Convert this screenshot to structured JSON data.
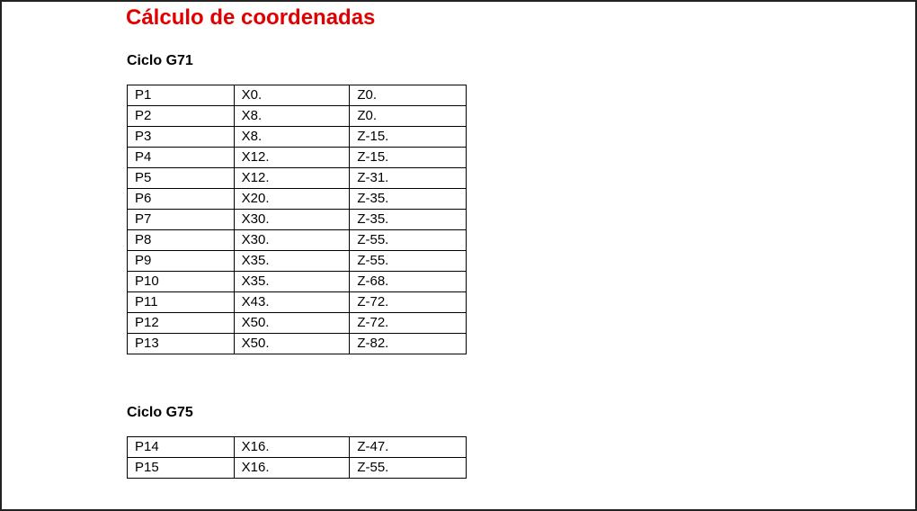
{
  "title": "Cálculo de coordenadas",
  "colors": {
    "title": "#e00000",
    "text": "#000000",
    "border": "#000000"
  },
  "sections": [
    {
      "heading": "Ciclo G71",
      "rows": [
        {
          "point": "P1",
          "x": "X0.",
          "z": "Z0."
        },
        {
          "point": "P2",
          "x": "X8.",
          "z": "Z0."
        },
        {
          "point": "P3",
          "x": "X8.",
          "z": "Z-15."
        },
        {
          "point": "P4",
          "x": "X12.",
          "z": "Z-15."
        },
        {
          "point": "P5",
          "x": "X12.",
          "z": "Z-31."
        },
        {
          "point": "P6",
          "x": "X20.",
          "z": "Z-35."
        },
        {
          "point": "P7",
          "x": "X30.",
          "z": "Z-35."
        },
        {
          "point": "P8",
          "x": "X30.",
          "z": "Z-55."
        },
        {
          "point": "P9",
          "x": "X35.",
          "z": "Z-55."
        },
        {
          "point": "P10",
          "x": "X35.",
          "z": "Z-68."
        },
        {
          "point": "P11",
          "x": "X43.",
          "z": "Z-72."
        },
        {
          "point": "P12",
          "x": "X50.",
          "z": "Z-72."
        },
        {
          "point": "P13",
          "x": "X50.",
          "z": "Z-82."
        }
      ]
    },
    {
      "heading": "Ciclo G75",
      "rows": [
        {
          "point": "P14",
          "x": "X16.",
          "z": "Z-47."
        },
        {
          "point": "P15",
          "x": "X16.",
          "z": "Z-55."
        }
      ]
    }
  ]
}
